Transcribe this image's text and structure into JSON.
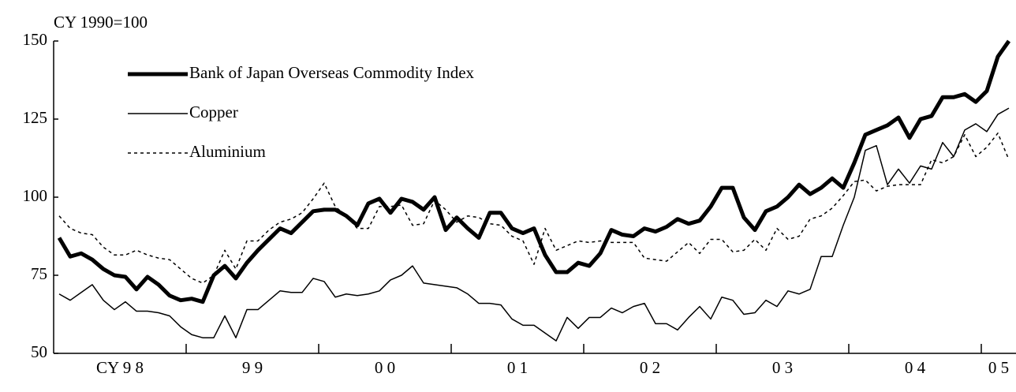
{
  "chart_data": {
    "type": "line",
    "ylabel": "CY 1990=100",
    "x_labels": [
      "CY 9 8",
      "9 9",
      "0 0",
      "0 1",
      "0 2",
      "0 3",
      "0 4",
      "0 5"
    ],
    "ylim": [
      50,
      150
    ],
    "yticks": [
      50,
      75,
      100,
      125,
      150
    ],
    "series": [
      {
        "name": "Bank of Japan Overseas Commodity Index",
        "color": "#000000",
        "width": 5,
        "dash": "solid",
        "values": [
          87,
          81,
          82,
          80,
          77,
          75,
          74.5,
          70.5,
          74.5,
          72,
          68.5,
          67,
          67.5,
          66.5,
          75,
          78,
          74,
          79,
          83,
          86.5,
          90,
          88.5,
          92,
          95.5,
          96,
          96,
          94,
          91,
          98,
          99.5,
          95,
          99.5,
          98.5,
          96,
          100,
          89.5,
          93.5,
          90,
          87,
          95,
          95,
          90,
          88.5,
          90,
          81.5,
          76,
          76,
          79,
          78,
          82,
          89.5,
          88,
          87.5,
          90,
          89,
          90.5,
          93,
          91.5,
          92.5,
          97,
          103,
          103,
          93.5,
          89.5,
          95.5,
          97,
          100,
          104,
          101,
          103,
          106,
          103,
          111,
          120,
          121.5,
          123,
          125.5,
          119,
          125,
          126,
          132,
          132,
          133,
          130.5,
          134,
          145,
          150
        ]
      },
      {
        "name": "Copper",
        "color": "#000000",
        "width": 1.5,
        "dash": "solid",
        "values": [
          69,
          67,
          69.5,
          72,
          67,
          64,
          66.5,
          63.5,
          63.5,
          63,
          62,
          58.5,
          56,
          55,
          55,
          62,
          55,
          64,
          64,
          67,
          70,
          69.5,
          69.5,
          74,
          73,
          68,
          69,
          68.5,
          69,
          70,
          73.5,
          75,
          78,
          72.5,
          72,
          71.5,
          71,
          69,
          66,
          66,
          65.5,
          61,
          59,
          59,
          56.5,
          54,
          61.5,
          58,
          61.5,
          61.5,
          64.5,
          63,
          65,
          66,
          59.5,
          59.5,
          57.5,
          61.5,
          65,
          61,
          68,
          67,
          62.5,
          63,
          67,
          65,
          70,
          69,
          70.5,
          81,
          81,
          91,
          100,
          115,
          116.5,
          104,
          109,
          104.5,
          110,
          109,
          117.5,
          113,
          121.5,
          123.5,
          121,
          126.5,
          128.5
        ]
      },
      {
        "name": "Aluminium",
        "color": "#000000",
        "width": 1.5,
        "dash": "dotted",
        "values": [
          94,
          90,
          88.5,
          88,
          84,
          81.5,
          81.5,
          83,
          81.5,
          80.5,
          80,
          77,
          74,
          72.5,
          75,
          83,
          77,
          86,
          86,
          89.5,
          92,
          93,
          95,
          99.5,
          104.5,
          97,
          94,
          90,
          90,
          97,
          97,
          97.5,
          91,
          91.5,
          99,
          96,
          92,
          94,
          93.5,
          91.5,
          91,
          87.5,
          86,
          78.5,
          90,
          83,
          84.5,
          86,
          85.5,
          86,
          85.5,
          85.5,
          85.5,
          80.5,
          80,
          79.5,
          82.5,
          85.5,
          82,
          86.5,
          86.5,
          82.5,
          83,
          86.5,
          83,
          90,
          86.5,
          87.5,
          93,
          94,
          96.5,
          100.5,
          105,
          105.5,
          102,
          103.5,
          104,
          104,
          104,
          112,
          111,
          113,
          120,
          113,
          116,
          120.5,
          112
        ]
      }
    ]
  }
}
